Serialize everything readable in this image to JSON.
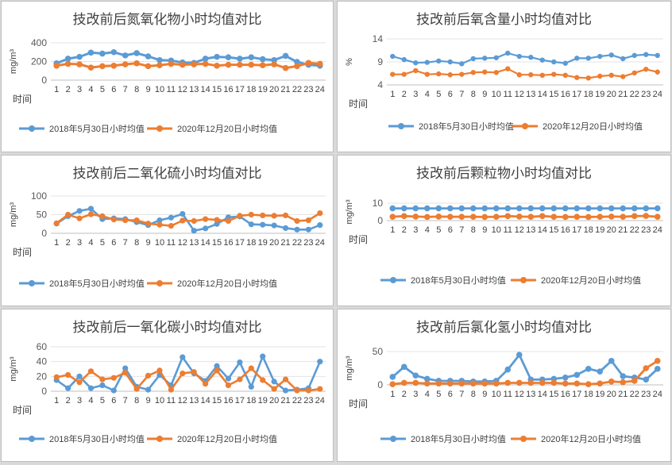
{
  "chart_data": [
    {
      "type": "line",
      "title": "技改前后氮氧化物小时均值对比",
      "ylabel": "mg/m³",
      "xlabel": "时间",
      "ylim": [
        0,
        400
      ],
      "yticks": [
        0,
        200,
        400
      ],
      "categories": [
        "1",
        "2",
        "3",
        "4",
        "5",
        "6",
        "7",
        "8",
        "9",
        "10",
        "11",
        "12",
        "13",
        "14",
        "15",
        "16",
        "17",
        "18",
        "19",
        "20",
        "21",
        "22",
        "23",
        "24"
      ],
      "series": [
        {
          "name": "2018年5月30日小时均值",
          "color": "#5b9bd5",
          "values": [
            180,
            230,
            250,
            295,
            285,
            300,
            265,
            290,
            255,
            215,
            210,
            190,
            185,
            230,
            250,
            245,
            230,
            245,
            225,
            215,
            260,
            195,
            165,
            155
          ]
        },
        {
          "name": "2020年12月20日小时均值",
          "color": "#ed7d31",
          "values": [
            155,
            175,
            170,
            135,
            150,
            155,
            170,
            180,
            150,
            160,
            175,
            165,
            170,
            175,
            155,
            165,
            165,
            165,
            160,
            170,
            130,
            150,
            185,
            175
          ]
        }
      ],
      "grid": true,
      "legend": "bottom"
    },
    {
      "type": "line",
      "title": "技改前后氧含量小时均值对比",
      "ylabel": "%",
      "xlabel": "时间",
      "ylim": [
        4,
        14
      ],
      "yticks": [
        4,
        9,
        14
      ],
      "categories": [
        "1",
        "2",
        "3",
        "4",
        "5",
        "6",
        "7",
        "8",
        "9",
        "10",
        "11",
        "12",
        "13",
        "14",
        "15",
        "16",
        "17",
        "18",
        "19",
        "20",
        "21",
        "22",
        "23",
        "24"
      ],
      "series": [
        {
          "name": "2018年5月30日小时均值",
          "color": "#5b9bd5",
          "values": [
            10.2,
            9.5,
            8.8,
            8.9,
            9.2,
            9.0,
            8.6,
            9.7,
            9.8,
            9.9,
            10.9,
            10.2,
            10.0,
            9.4,
            9.0,
            8.7,
            9.8,
            9.8,
            10.2,
            10.5,
            9.7,
            10.4,
            10.6,
            10.4
          ]
        },
        {
          "name": "2020年12月20日小时均值",
          "color": "#ed7d31",
          "values": [
            6.3,
            6.3,
            7.1,
            6.3,
            6.4,
            6.2,
            6.3,
            6.7,
            6.8,
            6.7,
            7.5,
            6.2,
            6.2,
            6.1,
            6.3,
            6.1,
            5.6,
            5.5,
            5.9,
            6.1,
            5.8,
            6.6,
            7.4,
            6.8
          ]
        }
      ],
      "grid": true,
      "legend": "bottom"
    },
    {
      "type": "line",
      "title": "技改前后二氧化硫小时均值对比",
      "ylabel": "mg/m³",
      "xlabel": "时间",
      "ylim": [
        0,
        100
      ],
      "yticks": [
        0,
        50,
        100
      ],
      "categories": [
        "1",
        "2",
        "3",
        "4",
        "5",
        "6",
        "7",
        "8",
        "9",
        "10",
        "11",
        "12",
        "13",
        "14",
        "15",
        "16",
        "17",
        "18",
        "19",
        "20",
        "21",
        "22",
        "23",
        "24"
      ],
      "series": [
        {
          "name": "2018年5月30日小时均值",
          "color": "#5b9bd5",
          "values": [
            26,
            46,
            60,
            66,
            38,
            40,
            38,
            30,
            22,
            35,
            42,
            52,
            7,
            13,
            25,
            43,
            45,
            24,
            23,
            21,
            14,
            10,
            10,
            22
          ]
        },
        {
          "name": "2020年12月20日小时均值",
          "color": "#ed7d31",
          "values": [
            27,
            50,
            40,
            51,
            46,
            37,
            35,
            35,
            26,
            23,
            20,
            34,
            33,
            38,
            36,
            33,
            47,
            50,
            48,
            47,
            48,
            33,
            35,
            54
          ]
        }
      ],
      "grid": true,
      "legend": "bottom"
    },
    {
      "type": "line",
      "title": "技改前后颗粒物小时均值对比",
      "ylabel": "mg/m³",
      "xlabel": "时间",
      "ylim": [
        0,
        10
      ],
      "yticks": [
        0,
        10
      ],
      "categories": [
        "1",
        "2",
        "3",
        "4",
        "5",
        "6",
        "7",
        "8",
        "9",
        "10",
        "11",
        "12",
        "13",
        "14",
        "15",
        "16",
        "17",
        "18",
        "19",
        "20",
        "21",
        "22",
        "23",
        "24"
      ],
      "series": [
        {
          "name": "2018年5月30日小时均值",
          "color": "#5b9bd5",
          "values": [
            7,
            7,
            7,
            7,
            7,
            7,
            7,
            7,
            7,
            7,
            7,
            7,
            7,
            7,
            7,
            7,
            7,
            7,
            7,
            7,
            7,
            7,
            7,
            7
          ]
        },
        {
          "name": "2020年12月20日小时均值",
          "color": "#ed7d31",
          "values": [
            2.2,
            2.6,
            2.3,
            2.1,
            2.3,
            2.2,
            2.2,
            2.2,
            2.1,
            2.2,
            2.6,
            2.3,
            2.2,
            2.6,
            2.2,
            2.1,
            2.2,
            2.1,
            2.2,
            2.3,
            2.2,
            2.6,
            2.7,
            2.2
          ]
        }
      ],
      "grid": true,
      "legend": "bottom"
    },
    {
      "type": "line",
      "title": "技改前后一氧化碳小时均值对比",
      "ylabel": "mg/m³",
      "xlabel": "时间",
      "ylim": [
        0,
        60
      ],
      "yticks": [
        0,
        20,
        40,
        60
      ],
      "categories": [
        "1",
        "2",
        "3",
        "4",
        "5",
        "6",
        "7",
        "8",
        "9",
        "10",
        "11",
        "12",
        "13",
        "14",
        "15",
        "16",
        "17",
        "18",
        "19",
        "20",
        "21",
        "22",
        "23",
        "24"
      ],
      "series": [
        {
          "name": "2018年5月30日小时均值",
          "color": "#5b9bd5",
          "values": [
            15,
            4,
            20,
            4,
            8,
            1,
            31,
            6,
            2,
            22,
            8,
            46,
            24,
            14,
            34,
            17,
            39,
            6,
            47,
            13,
            1,
            2,
            4,
            40
          ]
        },
        {
          "name": "2020年12月20日小时均值",
          "color": "#ed7d31",
          "values": [
            19,
            22,
            12,
            27,
            16,
            18,
            25,
            3,
            21,
            28,
            2,
            24,
            26,
            10,
            28,
            8,
            16,
            31,
            15,
            3,
            16,
            1,
            1,
            3
          ]
        }
      ],
      "grid": true,
      "legend": "bottom"
    },
    {
      "type": "line",
      "title": "技改前后氯化氢小时均值对比",
      "ylabel": "mg/m³",
      "xlabel": "时间",
      "ylim": [
        0,
        50
      ],
      "yticks": [
        0,
        50
      ],
      "categories": [
        "1",
        "2",
        "3",
        "4",
        "5",
        "6",
        "7",
        "8",
        "9",
        "10",
        "11",
        "12",
        "13",
        "14",
        "15",
        "16",
        "17",
        "18",
        "19",
        "20",
        "21",
        "22",
        "23",
        "24"
      ],
      "series": [
        {
          "name": "2018年5月30日小时均值",
          "color": "#5b9bd5",
          "values": [
            12,
            27,
            14,
            9,
            6,
            6,
            6,
            5,
            5,
            6,
            23,
            45,
            8,
            8,
            9,
            11,
            15,
            24,
            20,
            36,
            13,
            11,
            8,
            24
          ]
        },
        {
          "name": "2020年12月20日小时均值",
          "color": "#ed7d31",
          "values": [
            1,
            3,
            3,
            2,
            2,
            2,
            2,
            2,
            2,
            2,
            3,
            3,
            3,
            3,
            3,
            2,
            2,
            1,
            2,
            5,
            4,
            6,
            25,
            36
          ]
        }
      ],
      "grid": true,
      "legend": "bottom"
    }
  ]
}
